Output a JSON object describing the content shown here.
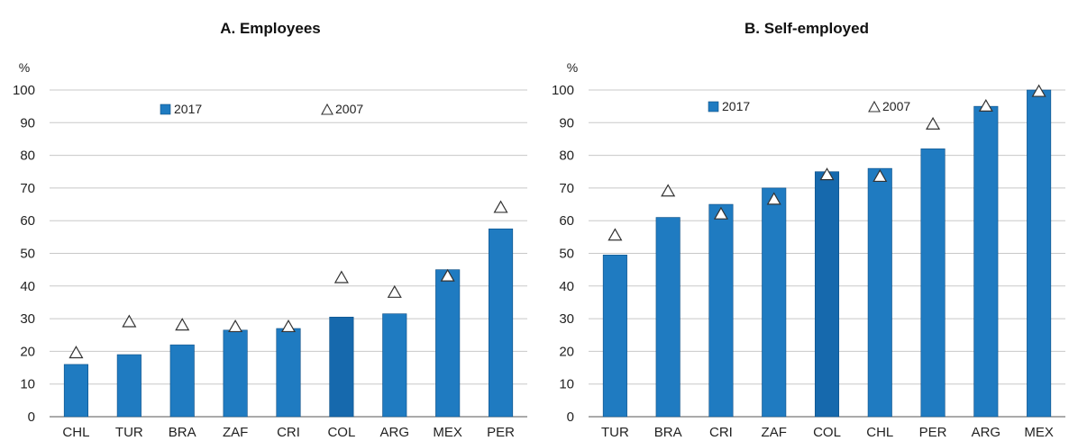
{
  "colors": {
    "bar": "#1f7bc1",
    "bar_dark": "#1669ad",
    "grid": "#c8c8c8",
    "marker_fill": "#ffffff",
    "marker_stroke": "#333333"
  },
  "chart_data": [
    {
      "type": "bar",
      "title": "A. Employees",
      "ylabel": "%",
      "ylim": [
        0,
        100
      ],
      "yticks": [
        "0",
        "10",
        "20",
        "30",
        "40",
        "50",
        "60",
        "70",
        "80",
        "90",
        "100"
      ],
      "grid": true,
      "legend": {
        "bar_label": "2017",
        "marker_label": "2007",
        "placement": "top"
      },
      "categories": [
        "CHL",
        "TUR",
        "BRA",
        "ZAF",
        "CRI",
        "COL",
        "ARG",
        "MEX",
        "PER"
      ],
      "series": [
        {
          "name": "2017",
          "kind": "bar",
          "values": [
            16,
            19,
            22,
            26.5,
            27,
            30.5,
            31.5,
            45,
            57.5
          ]
        },
        {
          "name": "2007",
          "kind": "marker",
          "values": [
            19.5,
            29,
            28,
            27.5,
            27.5,
            42.5,
            38,
            43,
            64
          ]
        }
      ],
      "highlight": "COL"
    },
    {
      "type": "bar",
      "title": "B. Self-employed",
      "ylabel": "%",
      "ylim": [
        0,
        100
      ],
      "yticks": [
        "0",
        "10",
        "20",
        "30",
        "40",
        "50",
        "60",
        "70",
        "80",
        "90",
        "100"
      ],
      "grid": true,
      "legend": {
        "bar_label": "2017",
        "marker_label": "2007",
        "placement": "top"
      },
      "categories": [
        "TUR",
        "BRA",
        "CRI",
        "ZAF",
        "COL",
        "CHL",
        "PER",
        "ARG",
        "MEX"
      ],
      "series": [
        {
          "name": "2017",
          "kind": "bar",
          "values": [
            49.5,
            61,
            65,
            70,
            75,
            76,
            82,
            95,
            100
          ]
        },
        {
          "name": "2007",
          "kind": "marker",
          "values": [
            55.5,
            69,
            62,
            66.5,
            74,
            73.5,
            89.5,
            95,
            99.5
          ]
        }
      ],
      "highlight": "COL"
    }
  ]
}
